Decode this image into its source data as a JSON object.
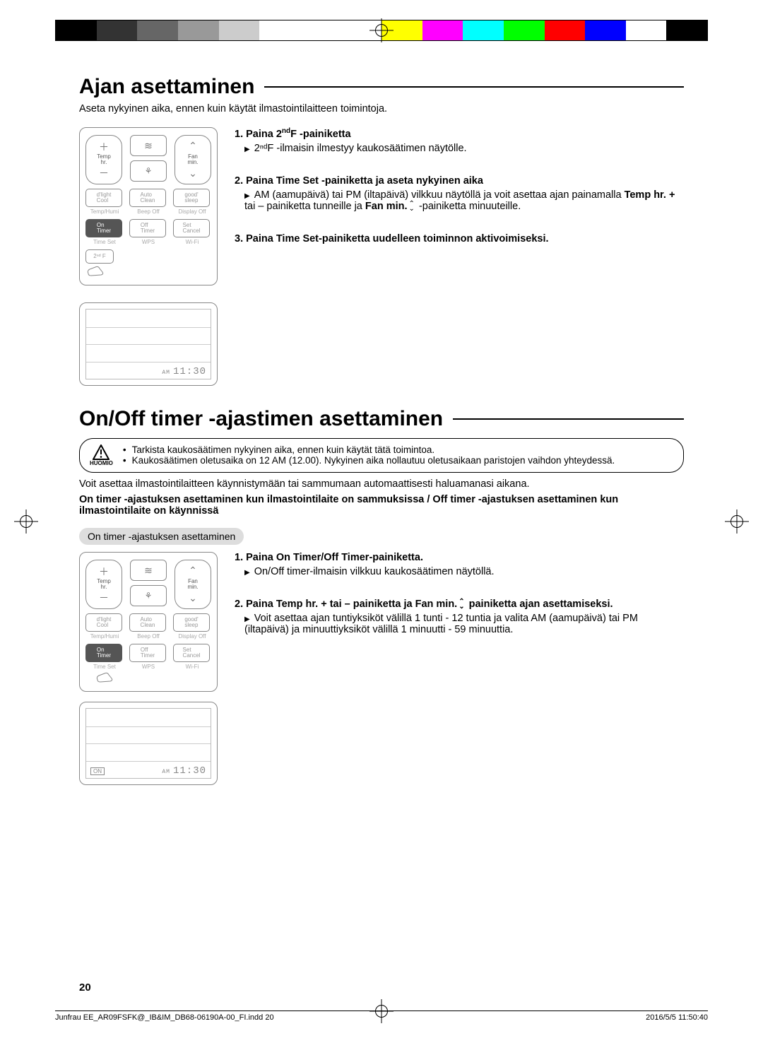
{
  "registration_colors": [
    "#000000",
    "#333333",
    "#666666",
    "#999999",
    "#cccccc",
    "#ffffff",
    "#ffffff",
    "#ffffff",
    "#ffff00",
    "#ff00ff",
    "#00ffff",
    "#00ff00",
    "#ff0000",
    "#0000ff",
    "#ffffff",
    "#000000"
  ],
  "section1": {
    "title": "Ajan asettaminen",
    "intro": "Aseta nykyinen aika, ennen kuin käytät ilmastointilaitteen toimintoja.",
    "step1_head_a": "1.  Paina ",
    "step1_head_b": "2",
    "step1_head_c": "nd",
    "step1_head_d": "F -painiketta",
    "step1_body": "2ⁿᵈF -ilmaisin ilmestyy kaukosäätimen näytölle.",
    "step2_head": "2.  Paina Time Set -painiketta ja aseta nykyinen aika",
    "step2_body_a": "AM (aamupäivä) tai PM (iltapäivä) vilkkuu näytöllä ja voit asettaa ajan painamalla ",
    "step2_body_b": "Temp hr. +",
    "step2_body_c": " tai – painiketta tunneille ja ",
    "step2_body_d": "Fan min.",
    "step2_body_e": "   -painiketta minuuteille.",
    "step3_head": "3.  Paina Time Set-painiketta uudelleen toiminnon aktivoimiseksi."
  },
  "remote": {
    "temp_hr": "Temp\nhr.",
    "fan_min": "Fan\nmin.",
    "dlight": "d'light\nCool",
    "auto": "Auto\nClean",
    "good": "good'\nsleep",
    "temp_humi": "Temp/Humi",
    "beep_off": "Beep Off",
    "display_off": "Display Off",
    "on_timer": "On\nTimer",
    "off_timer": "Off\nTimer",
    "set_cancel": "Set\nCancel",
    "time_set": "Time Set",
    "wps": "WPS",
    "wifi": "Wi-Fi",
    "second_f": "2ⁿᵈ F"
  },
  "display": {
    "am": "AM",
    "time": "11:30",
    "on": "ON"
  },
  "section2": {
    "title": "On/Off timer -ajastimen asettaminen",
    "warn_label": "HUOMIO",
    "warn1": "Tarkista kaukosäätimen nykyinen aika, ennen kuin käytät tätä toimintoa.",
    "warn2": "Kaukosäätimen oletusaika on 12 AM (12.00). Nykyinen aika nollautuu oletusaikaan paristojen vaihdon yhteydessä.",
    "p1": "Voit asettaa ilmastointilaitteen käynnistymään tai sammumaan automaattisesti haluamanasi aikana.",
    "p2": "On timer -ajastuksen asettaminen kun ilmastointilaite on sammuksissa / Off timer -ajastuksen asettaminen kun ilmastointilaite on käynnissä",
    "pill": "On timer -ajastuksen asettaminen",
    "s1_head": "1.  Paina On Timer/Off Timer-painiketta.",
    "s1_body": "On/Off timer-ilmaisin vilkkuu kaukosäätimen näytöllä.",
    "s2_head_a": "2.  Paina Temp hr. + tai – painiketta ja Fan min.",
    "s2_head_b": "   painiketta ajan asettamiseksi.",
    "s2_body": "Voit asettaa ajan tuntiyksiköt välillä 1 tunti - 12 tuntia ja valita AM (aamupäivä) tai PM (iltapäivä) ja minuuttiyksiköt välillä 1 minuutti - 59 minuuttia."
  },
  "page_number": "20",
  "footer_left": "Junfrau EE_AR09FSFK@_IB&IM_DB68-06190A-00_FI.indd   20",
  "footer_right": "2016/5/5   11:50:40"
}
